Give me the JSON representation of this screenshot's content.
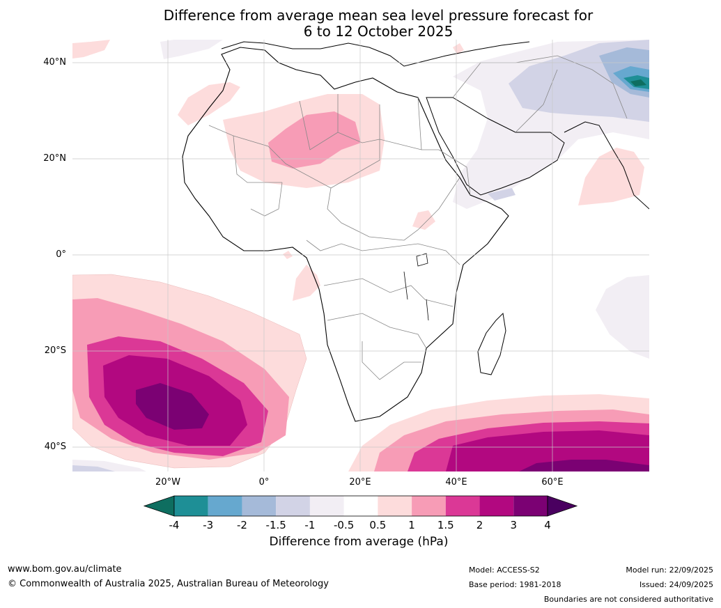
{
  "title_line1": "Difference from average mean sea level pressure forecast for",
  "title_line2": "6 to 12 October 2025",
  "latitude_labels": [
    "40°N",
    "20°N",
    "0°",
    "20°S",
    "40°S"
  ],
  "longitude_labels": [
    "20°W",
    "0°",
    "20°E",
    "40°E",
    "60°E"
  ],
  "colorbar": {
    "ticks": [
      "-4",
      "-3",
      "-2",
      "-1.5",
      "-1",
      "-0.5",
      "0.5",
      "1",
      "1.5",
      "2",
      "3",
      "4"
    ],
    "colors": [
      "#0e6e60",
      "#1e8f96",
      "#66a8cf",
      "#a5bad9",
      "#d2d3e6",
      "#f2eef4",
      "#ffffff",
      "#fddcdc",
      "#f79cb6",
      "#db3896",
      "#b20880",
      "#7b0173",
      "#4a0060"
    ],
    "label": "Difference from average (hPa)"
  },
  "footer": {
    "website": "www.bom.gov.au/climate",
    "copyright": "© Commonwealth of Australia 2025, Australian Bureau of Meteorology",
    "model": "Model: ACCESS-S2",
    "base_period": "Base period: 1981-2018",
    "model_run": "Model run: 22/09/2025",
    "issued": "Issued: 24/09/2025",
    "disclaimer": "Boundaries are not considered authoritative"
  }
}
